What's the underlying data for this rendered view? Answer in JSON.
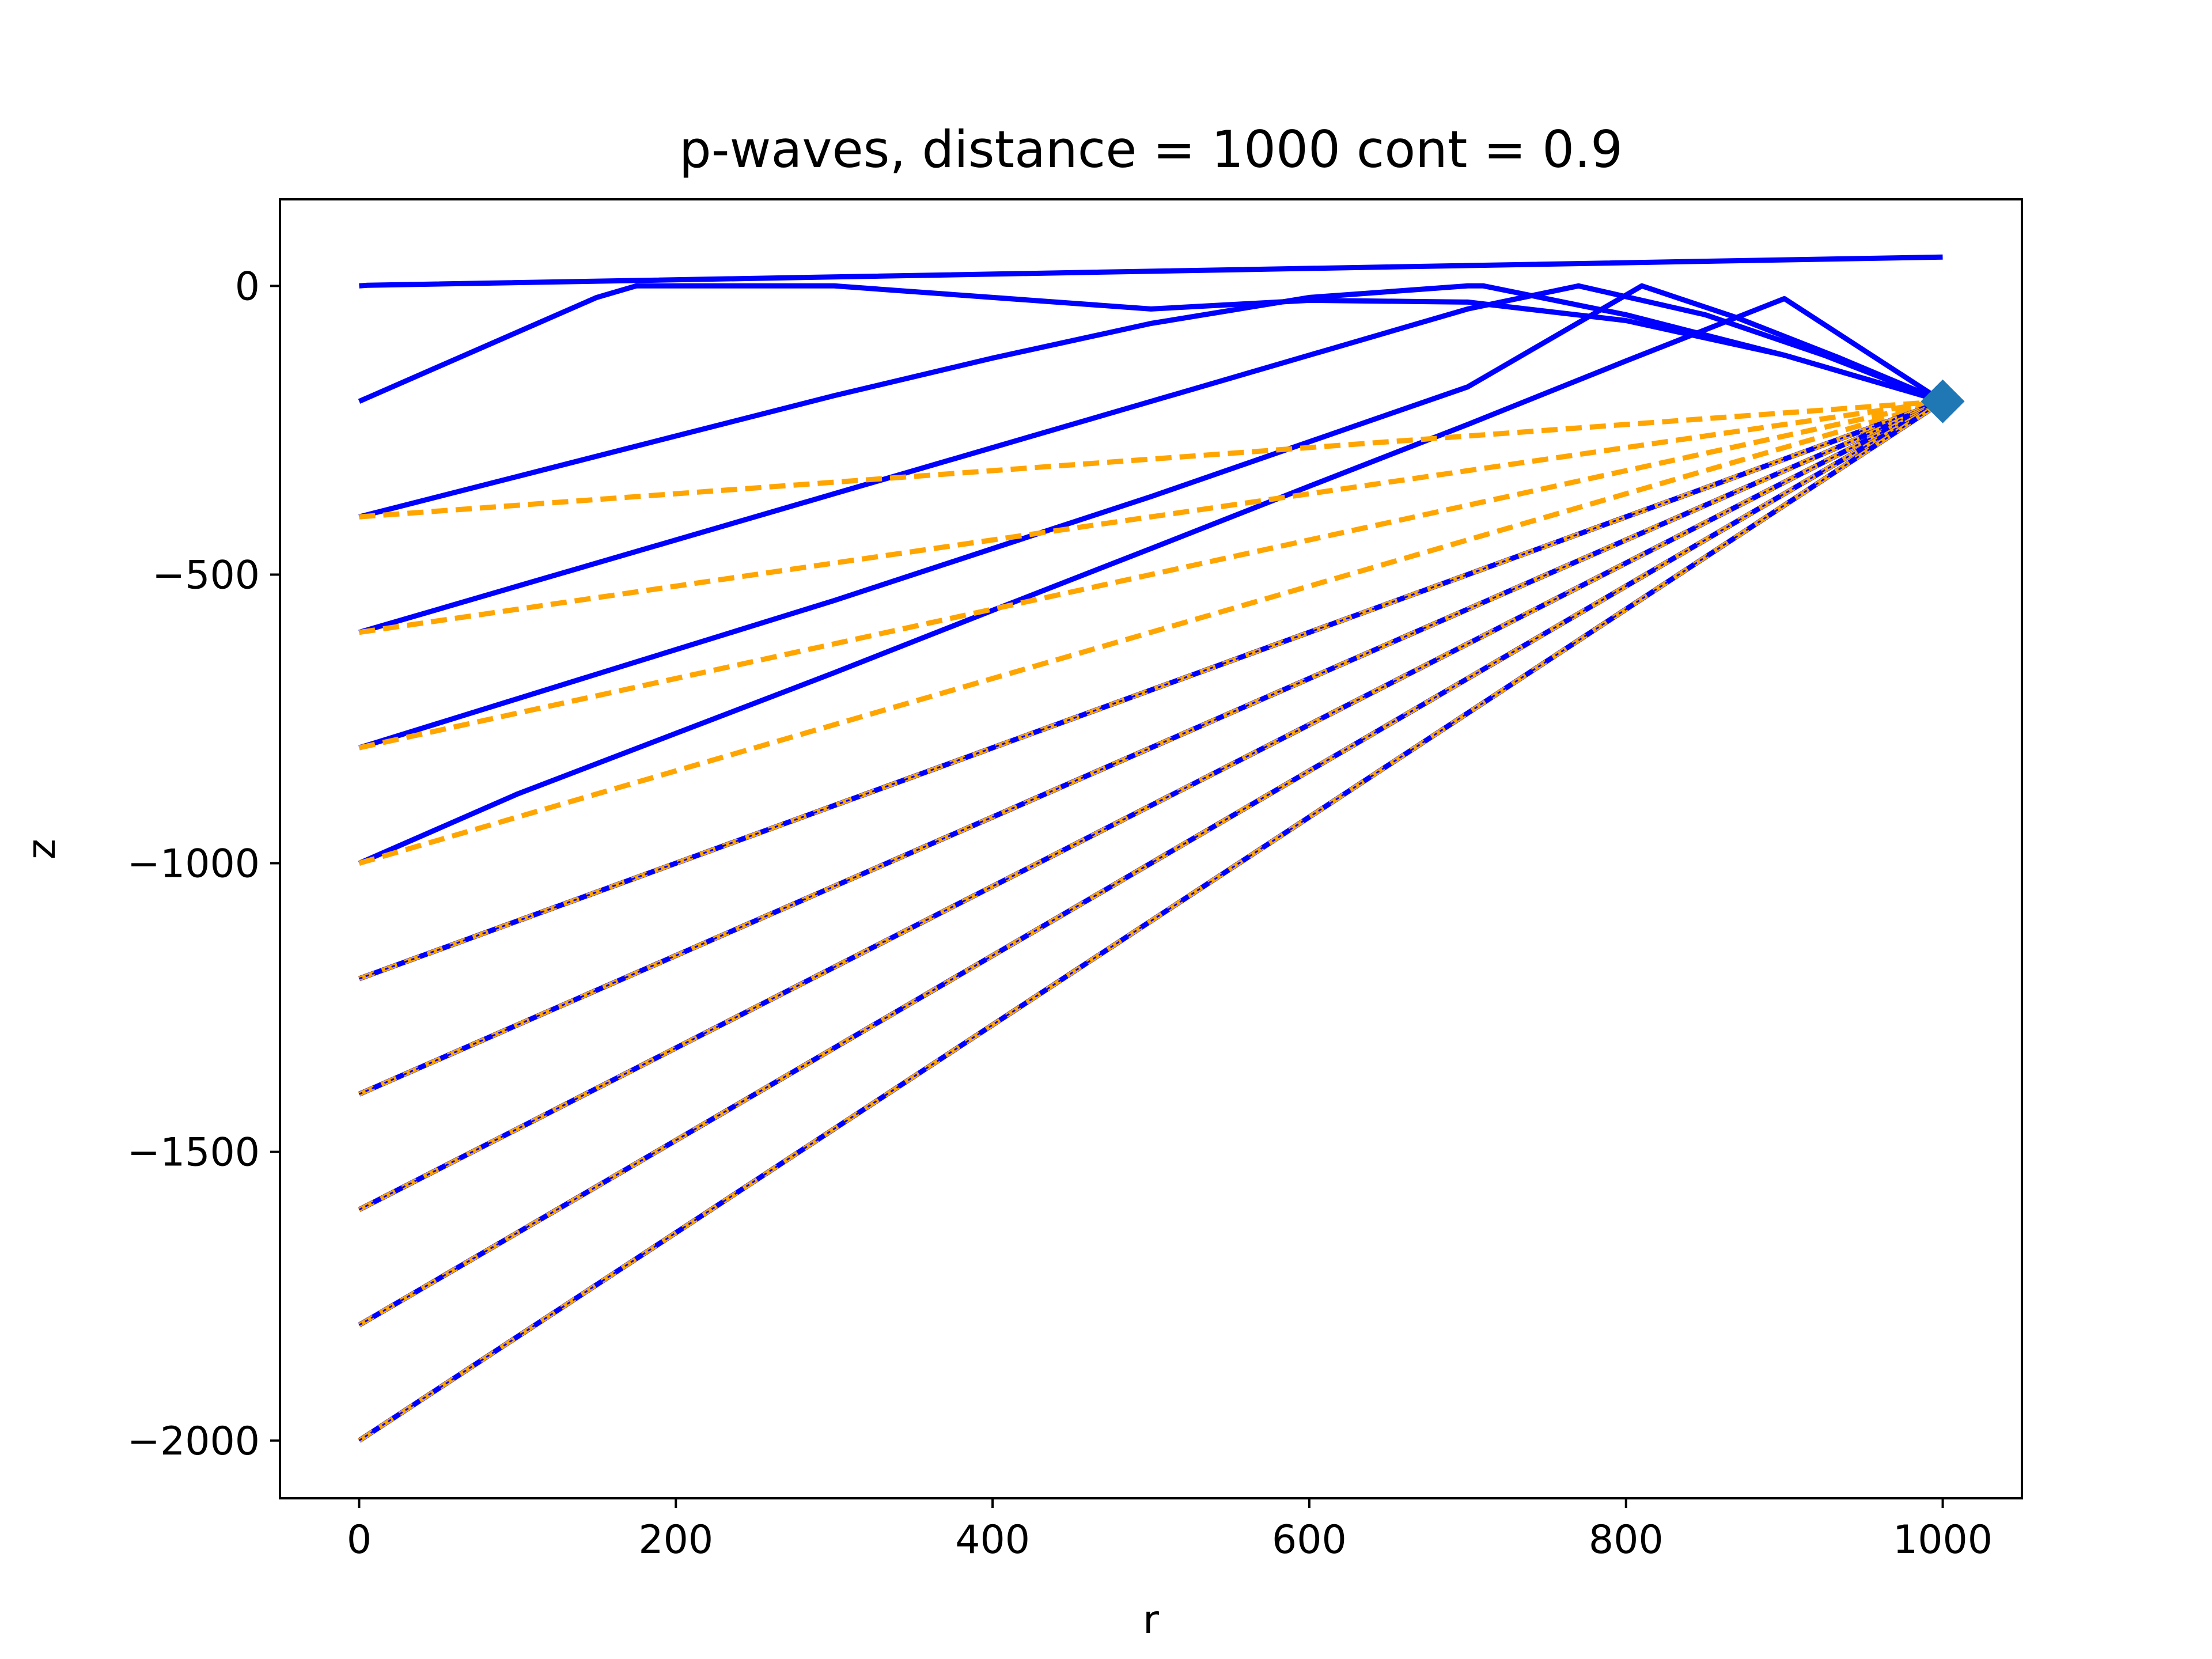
{
  "chart_data": {
    "type": "line",
    "title": "p-waves, distance = 1000 cont = 0.9",
    "xlabel": "r",
    "ylabel": "z",
    "xlim": [
      -50,
      1050
    ],
    "ylim": [
      -2100,
      150
    ],
    "xticks": [
      0,
      200,
      400,
      600,
      800,
      1000
    ],
    "yticks": [
      0,
      -500,
      -1000,
      -1500,
      -2000
    ],
    "xtick_labels": [
      "0",
      "200",
      "400",
      "600",
      "800",
      "1000"
    ],
    "ytick_labels": [
      "0",
      "−500",
      "−1000",
      "−1500",
      "−2000"
    ],
    "grid": false,
    "legend": "none",
    "colors": {
      "ray": "#0000ff",
      "straight": "#ffa500",
      "receiver": "#1f77b4"
    },
    "receiver": {
      "x": 1000,
      "y": -200,
      "marker": "diamond"
    },
    "series": [
      {
        "style": "solid-blue",
        "x": [
          0,
          5,
          1000
        ],
        "y": [
          0,
          1,
          50
        ]
      },
      {
        "style": "solid-blue",
        "x": [
          0,
          50,
          100,
          150,
          175,
          300,
          500,
          600,
          700,
          800,
          900,
          1000
        ],
        "y": [
          -200,
          -140,
          -80,
          -20,
          0,
          0,
          -40,
          -25,
          -28,
          -60,
          -120,
          -200
        ]
      },
      {
        "style": "solid-blue",
        "x": [
          0,
          100,
          200,
          300,
          400,
          500,
          600,
          700,
          710,
          800,
          900,
          1000
        ],
        "y": [
          -400,
          -330,
          -260,
          -190,
          -125,
          -65,
          -20,
          0,
          0,
          -50,
          -120,
          -200
        ]
      },
      {
        "style": "solid-blue",
        "x": [
          0,
          100,
          200,
          300,
          400,
          500,
          600,
          700,
          770,
          850,
          925,
          1000
        ],
        "y": [
          -600,
          -520,
          -440,
          -360,
          -280,
          -200,
          -120,
          -40,
          0,
          -50,
          -120,
          -200
        ]
      },
      {
        "style": "solid-blue",
        "x": [
          0,
          100,
          200,
          300,
          400,
          500,
          600,
          700,
          810,
          870,
          935,
          1000
        ],
        "y": [
          -800,
          -715,
          -630,
          -545,
          -455,
          -365,
          -270,
          -175,
          0,
          -55,
          -125,
          -200
        ]
      },
      {
        "style": "solid-blue",
        "x": [
          0,
          100,
          200,
          300,
          400,
          500,
          600,
          700,
          800,
          900,
          1000
        ],
        "y": [
          -1000,
          -880,
          -775,
          -670,
          -562,
          -455,
          -347,
          -240,
          -130,
          -22,
          -200
        ]
      },
      {
        "style": "dashed-orange",
        "x": [
          0,
          1000
        ],
        "y": [
          -400,
          -200
        ]
      },
      {
        "style": "dashed-orange",
        "x": [
          0,
          1000
        ],
        "y": [
          -600,
          -200
        ]
      },
      {
        "style": "dashed-orange",
        "x": [
          0,
          1000
        ],
        "y": [
          -800,
          -200
        ]
      },
      {
        "style": "dashed-orange",
        "x": [
          0,
          1000
        ],
        "y": [
          -1000,
          -200
        ]
      },
      {
        "style": "dotted-blue-dashed-orange",
        "x": [
          0,
          1000
        ],
        "y": [
          -1200,
          -200
        ]
      },
      {
        "style": "dotted-blue-dashed-orange",
        "x": [
          0,
          1000
        ],
        "y": [
          -1400,
          -200
        ]
      },
      {
        "style": "dotted-blue-dashed-orange",
        "x": [
          0,
          1000
        ],
        "y": [
          -1600,
          -200
        ]
      },
      {
        "style": "dotted-blue-dashed-orange",
        "x": [
          0,
          1000
        ],
        "y": [
          -1800,
          -200
        ]
      },
      {
        "style": "dotted-blue-dashed-orange",
        "x": [
          0,
          1000
        ],
        "y": [
          -2000,
          -200
        ]
      }
    ]
  }
}
